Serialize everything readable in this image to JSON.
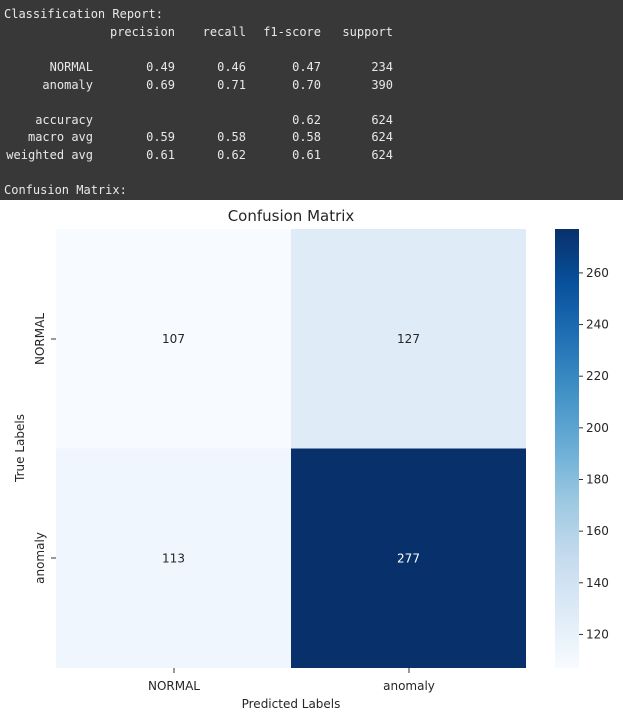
{
  "report": {
    "heading": "Classification Report:",
    "columns": [
      "precision",
      "recall",
      "f1-score",
      "support"
    ],
    "rows": [
      {
        "label": "NORMAL",
        "precision": "0.49",
        "recall": "0.46",
        "f1": "0.47",
        "support": "234"
      },
      {
        "label": "anomaly",
        "precision": "0.69",
        "recall": "0.71",
        "f1": "0.70",
        "support": "390"
      },
      {
        "label": "accuracy",
        "precision": "",
        "recall": "",
        "f1": "0.62",
        "support": "624"
      },
      {
        "label": "macro avg",
        "precision": "0.59",
        "recall": "0.58",
        "f1": "0.58",
        "support": "624"
      },
      {
        "label": "weighted avg",
        "precision": "0.61",
        "recall": "0.62",
        "f1": "0.61",
        "support": "624"
      }
    ],
    "footer": "Confusion Matrix:"
  },
  "chart_data": {
    "type": "heatmap",
    "title": "Confusion Matrix",
    "xlabel": "Predicted Labels",
    "ylabel": "True Labels",
    "x_categories": [
      "NORMAL",
      "anomaly"
    ],
    "y_categories": [
      "NORMAL",
      "anomaly"
    ],
    "values": [
      [
        107,
        127
      ],
      [
        113,
        277
      ]
    ],
    "colormap": "Blues",
    "colorbar": {
      "min": 107,
      "max": 277,
      "ticks": [
        120,
        140,
        160,
        180,
        200,
        220,
        240,
        260
      ]
    },
    "colors": {
      "low": "#f7fbff",
      "high": "#08306b",
      "dark_text": "#262626",
      "light_text": "#ffffff"
    }
  }
}
